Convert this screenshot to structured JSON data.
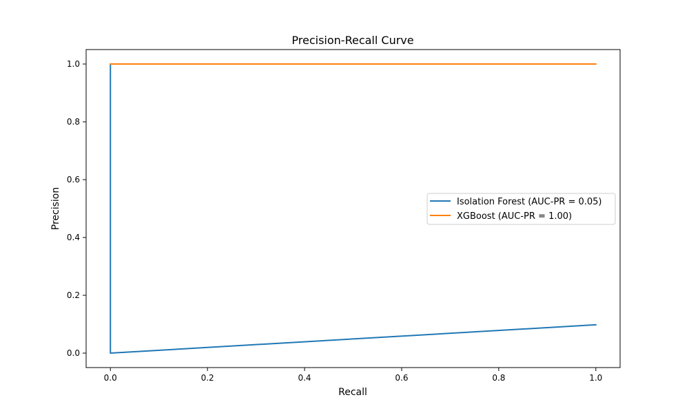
{
  "chart_data": {
    "type": "line",
    "title": "Precision-Recall Curve",
    "xlabel": "Recall",
    "ylabel": "Precision",
    "xlim": [
      -0.05,
      1.05
    ],
    "ylim": [
      -0.05,
      1.05
    ],
    "xticks": [
      0.0,
      0.2,
      0.4,
      0.6,
      0.8,
      1.0
    ],
    "yticks": [
      0.0,
      0.2,
      0.4,
      0.6,
      0.8,
      1.0
    ],
    "xtick_labels": [
      "0.0",
      "0.2",
      "0.4",
      "0.6",
      "0.8",
      "1.0"
    ],
    "ytick_labels": [
      "0.0",
      "0.2",
      "0.4",
      "0.6",
      "0.8",
      "1.0"
    ],
    "grid": false,
    "legend_position": "center-right",
    "series": [
      {
        "name": "Isolation Forest (AUC-PR = 0.05)",
        "color": "#1f77b4",
        "points": [
          [
            0.0,
            1.0
          ],
          [
            0.0,
            0.0
          ],
          [
            1.0,
            0.098
          ]
        ]
      },
      {
        "name": "XGBoost (AUC-PR = 1.00)",
        "color": "#ff7f0e",
        "points": [
          [
            0.0,
            1.0
          ],
          [
            1.0,
            1.0
          ]
        ]
      }
    ]
  }
}
